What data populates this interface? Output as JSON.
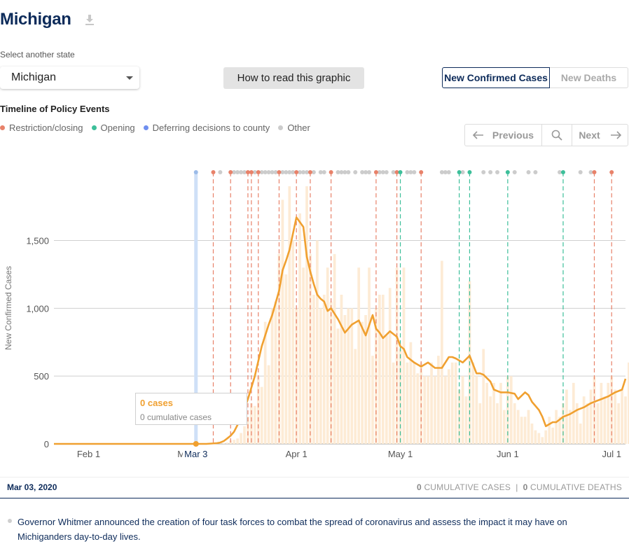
{
  "page": {
    "title": "Michigan",
    "select_label": "Select another state",
    "selected_state": "Michigan",
    "howto_label": "How to read this graphic",
    "toggle": {
      "active": "New Confirmed Cases",
      "inactive": "New Deaths"
    },
    "timeline_title": "Timeline of Policy Events",
    "legend": [
      {
        "label": "Restriction/closing",
        "color": "#e8826a"
      },
      {
        "label": "Opening",
        "color": "#3dbf9a"
      },
      {
        "label": "Deferring decisions to county",
        "color": "#6f8ff0"
      },
      {
        "label": "Other",
        "color": "#cccccc"
      }
    ],
    "pager": {
      "prev": "Previous",
      "next": "Next"
    },
    "tooltip": {
      "cases": "0 cases",
      "cumulative": "0 cumulative cases"
    },
    "info": {
      "date": "Mar 03, 2020",
      "cum_cases_num": "0",
      "cum_cases_label": "CUMULATIVE CASES",
      "separator": "|",
      "cum_deaths_num": "0",
      "cum_deaths_label": "CUMULATIVE DEATHS"
    },
    "event_text": "Governor Whitmer announced the creation of four task forces to combat the spread of coronavirus and assess the impact it may have on Michiganders day-to-day lives."
  },
  "chart_data": {
    "type": "bar",
    "ylabel": "New Confirmed Cases",
    "ylim": [
      0,
      1900
    ],
    "yticks": [
      0,
      500,
      1000,
      1500
    ],
    "ytick_labels": [
      "0",
      "500",
      "1,000",
      "1,500"
    ],
    "xlim_day": [
      0,
      165
    ],
    "xticks": [
      {
        "day": 10,
        "label": "Feb 1"
      },
      {
        "day": 39,
        "label": "Mar 1"
      },
      {
        "day": 41,
        "label": "Mar 3",
        "selected": true
      },
      {
        "day": 70,
        "label": "Apr 1"
      },
      {
        "day": 100,
        "label": "May 1"
      },
      {
        "day": 131,
        "label": "Jun 1"
      },
      {
        "day": 161,
        "label": "Jul 1"
      }
    ],
    "selected_day": 41,
    "selected_label": "Mar 3",
    "daily_start_day": 48,
    "daily_values": [
      2,
      5,
      10,
      25,
      30,
      40,
      80,
      130,
      200,
      300,
      280,
      500,
      420,
      900,
      580,
      1000,
      1050,
      1400,
      1800,
      1250,
      2000,
      1500,
      1000,
      1700,
      1300,
      1950,
      1400,
      1100,
      1500,
      1000,
      1100,
      1300,
      1050,
      1400,
      850,
      1100,
      950,
      1000,
      1000,
      700,
      1300,
      900,
      950,
      1300,
      650,
      1000,
      1100,
      1100,
      800,
      1150,
      600,
      1300,
      700,
      1300,
      600,
      750,
      600,
      520,
      600,
      500,
      500,
      600,
      500,
      650,
      1350,
      500,
      550,
      600,
      600,
      400,
      500,
      350,
      1200,
      600,
      500,
      300,
      700,
      450,
      350,
      450,
      300,
      450,
      250,
      500,
      500,
      300,
      250,
      200,
      200,
      250,
      150,
      100,
      80,
      50,
      100,
      200,
      120,
      250,
      200,
      300,
      400,
      250,
      450,
      300,
      150,
      350,
      300,
      400,
      500,
      300,
      450,
      350,
      450,
      500,
      400,
      300,
      400,
      350,
      600,
      350,
      600,
      450,
      550,
      500,
      650,
      550
    ],
    "avg_x": [
      0,
      44,
      47,
      48,
      49,
      50,
      51,
      52,
      53,
      54,
      55,
      56,
      58,
      60,
      62,
      63,
      65,
      66,
      67,
      68,
      69,
      70,
      72,
      73,
      74,
      75,
      76,
      77,
      78,
      79,
      80,
      82,
      84,
      86,
      88,
      90,
      92,
      93,
      94,
      95,
      97,
      99,
      100,
      101,
      102,
      104,
      106,
      108,
      110,
      112,
      114,
      115,
      116,
      118,
      120,
      122,
      123,
      124,
      126,
      127,
      129,
      131,
      133,
      134,
      136,
      137,
      138,
      140,
      141,
      142,
      144,
      145,
      147,
      149,
      151,
      153,
      155,
      157,
      158,
      160,
      162,
      164,
      165
    ],
    "avg_y": [
      0,
      0,
      5,
      10,
      20,
      40,
      60,
      90,
      140,
      200,
      260,
      330,
      500,
      720,
      880,
      950,
      1130,
      1280,
      1350,
      1430,
      1550,
      1670,
      1600,
      1380,
      1270,
      1180,
      1100,
      1070,
      1050,
      980,
      1000,
      920,
      820,
      880,
      910,
      800,
      950,
      850,
      820,
      780,
      830,
      790,
      720,
      700,
      640,
      600,
      570,
      600,
      560,
      560,
      640,
      640,
      630,
      600,
      650,
      520,
      520,
      510,
      460,
      400,
      380,
      380,
      370,
      330,
      380,
      360,
      310,
      250,
      200,
      130,
      160,
      160,
      200,
      220,
      250,
      270,
      300,
      320,
      330,
      350,
      380,
      400,
      480,
      490,
      480
    ],
    "policy_lines": [
      {
        "day": 41,
        "type": "other"
      },
      {
        "day": 46,
        "type": "restriction"
      },
      {
        "day": 51,
        "type": "restriction"
      },
      {
        "day": 56,
        "type": "restriction"
      },
      {
        "day": 57,
        "type": "restriction"
      },
      {
        "day": 59,
        "type": "restriction"
      },
      {
        "day": 65,
        "type": "restriction"
      },
      {
        "day": 70,
        "type": "restriction"
      },
      {
        "day": 74,
        "type": "restriction"
      },
      {
        "day": 80,
        "type": "restriction"
      },
      {
        "day": 93,
        "type": "restriction"
      },
      {
        "day": 99,
        "type": "restriction"
      },
      {
        "day": 100,
        "type": "opening"
      },
      {
        "day": 106,
        "type": "restriction"
      },
      {
        "day": 117,
        "type": "opening"
      },
      {
        "day": 120,
        "type": "opening"
      },
      {
        "day": 131,
        "type": "opening"
      },
      {
        "day": 147,
        "type": "opening"
      },
      {
        "day": 156,
        "type": "restriction"
      },
      {
        "day": 161,
        "type": "restriction"
      }
    ],
    "other_dots": [
      48,
      51,
      52,
      53,
      54,
      55,
      58,
      60,
      61,
      62,
      63,
      64,
      66,
      67,
      68,
      69,
      71,
      72,
      73,
      75,
      77,
      78,
      82,
      83,
      84,
      85,
      87,
      89,
      90,
      91,
      94,
      95,
      96,
      98,
      102,
      103,
      104,
      112,
      113,
      114,
      118,
      124,
      126,
      128,
      133,
      137,
      139,
      146,
      152,
      155
    ]
  }
}
